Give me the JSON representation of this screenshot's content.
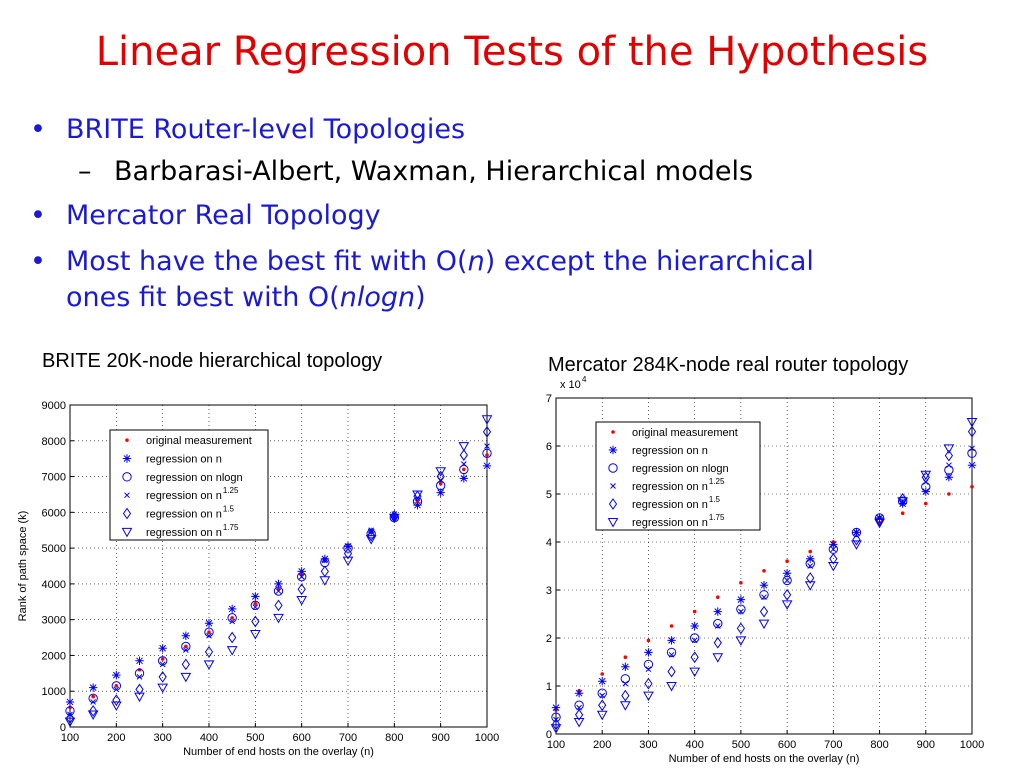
{
  "slide": {
    "title": "Linear Regression Tests of the Hypothesis",
    "bullets": [
      {
        "text": "BRITE Router-level Topologies"
      },
      {
        "text": "Barbarasi-Albert, Waxman, Hierarchical models"
      },
      {
        "text": "Mercator Real Topology"
      },
      {
        "text_a": "Most have the best fit with O(",
        "text_b": "n",
        "text_c": ") except the hierarchical",
        "text_d": "ones fit best with O(",
        "text_e": "nlogn",
        "text_f": ")"
      }
    ],
    "bullet_marker": "•",
    "sub_marker": "–"
  },
  "chart_data": [
    {
      "type": "scatter",
      "title": "BRITE 20K-node hierarchical topology",
      "xlabel": "Number of end hosts on the overlay (n)",
      "ylabel": "Rank of path space (k)",
      "xlim": [
        100,
        1000
      ],
      "ylim": [
        0,
        9000
      ],
      "xticks": [
        100,
        200,
        300,
        400,
        500,
        600,
        700,
        800,
        900,
        1000
      ],
      "yticks": [
        0,
        1000,
        2000,
        3000,
        4000,
        5000,
        6000,
        7000,
        8000,
        9000
      ],
      "y_multiplier": "",
      "grid": true,
      "legend_position": "top-left",
      "x": [
        100,
        150,
        200,
        250,
        300,
        350,
        400,
        450,
        500,
        550,
        600,
        650,
        700,
        750,
        800,
        850,
        900,
        950,
        1000
      ],
      "series": [
        {
          "name": "original measurement",
          "marker": "dot",
          "color": "#ff0000",
          "values": [
            550,
            850,
            1150,
            1600,
            1900,
            2250,
            2650,
            3050,
            3450,
            3850,
            4250,
            4650,
            5050,
            5450,
            5900,
            6300,
            6800,
            7200,
            7600
          ]
        },
        {
          "name": "regression on n",
          "marker": "star",
          "color": "#0000ff",
          "values": [
            700,
            1100,
            1450,
            1850,
            2200,
            2550,
            2900,
            3300,
            3650,
            4000,
            4350,
            4700,
            5050,
            5450,
            5850,
            6200,
            6550,
            6950,
            7300
          ]
        },
        {
          "name": "regression on nlogn",
          "marker": "circle",
          "color": "#0000ff",
          "values": [
            450,
            800,
            1150,
            1500,
            1850,
            2250,
            2650,
            3050,
            3400,
            3800,
            4200,
            4600,
            5000,
            5400,
            5850,
            6300,
            6750,
            7200,
            7650
          ]
        },
        {
          "name": "regression on n",
          "name_sup": "1.25",
          "marker": "x",
          "color": "#0000ff",
          "values": [
            350,
            700,
            1050,
            1400,
            1750,
            2150,
            2550,
            2950,
            3350,
            3800,
            4200,
            4650,
            5050,
            5500,
            5950,
            6400,
            6900,
            7350,
            7850
          ]
        },
        {
          "name": "regression on n",
          "name_sup": "1.5",
          "marker": "diamond",
          "color": "#0000ff",
          "values": [
            250,
            450,
            750,
            1050,
            1400,
            1750,
            2100,
            2500,
            2950,
            3400,
            3850,
            4350,
            4850,
            5350,
            5900,
            6450,
            7000,
            7600,
            8250
          ]
        },
        {
          "name": "regression on n",
          "name_sup": "1.75",
          "marker": "triangle",
          "color": "#0000ff",
          "values": [
            150,
            350,
            600,
            850,
            1100,
            1400,
            1750,
            2150,
            2600,
            3050,
            3550,
            4100,
            4650,
            5250,
            5850,
            6500,
            7150,
            7850,
            8600
          ]
        }
      ]
    },
    {
      "type": "scatter",
      "title": "Mercator 284K-node real router topology",
      "xlabel": "Number of end hosts on the overlay (n)",
      "ylabel": "",
      "xlim": [
        100,
        1000
      ],
      "ylim": [
        0,
        7
      ],
      "xticks": [
        100,
        200,
        300,
        400,
        500,
        600,
        700,
        800,
        900,
        1000
      ],
      "yticks": [
        0,
        1,
        2,
        3,
        4,
        5,
        6,
        7
      ],
      "y_multiplier": "x 10",
      "y_multiplier_exp": "4",
      "grid": true,
      "legend_position": "top-left",
      "x": [
        100,
        150,
        200,
        250,
        300,
        350,
        400,
        450,
        500,
        550,
        600,
        650,
        700,
        750,
        800,
        850,
        900,
        950,
        1000
      ],
      "series": [
        {
          "name": "original measurement",
          "marker": "dot",
          "color": "#ff0000",
          "values": [
            0.5,
            0.9,
            1.25,
            1.6,
            1.95,
            2.25,
            2.55,
            2.85,
            3.15,
            3.4,
            3.6,
            3.8,
            4.0,
            4.2,
            4.4,
            4.6,
            4.8,
            5.0,
            5.15
          ]
        },
        {
          "name": "regression on n",
          "marker": "star",
          "color": "#0000ff",
          "values": [
            0.55,
            0.85,
            1.1,
            1.4,
            1.7,
            1.95,
            2.25,
            2.55,
            2.8,
            3.1,
            3.35,
            3.65,
            3.95,
            4.2,
            4.5,
            4.8,
            5.05,
            5.35,
            5.6
          ]
        },
        {
          "name": "regression on nlogn",
          "marker": "circle",
          "color": "#0000ff",
          "values": [
            0.35,
            0.6,
            0.85,
            1.15,
            1.45,
            1.7,
            2.0,
            2.3,
            2.6,
            2.9,
            3.2,
            3.55,
            3.85,
            4.2,
            4.5,
            4.85,
            5.15,
            5.5,
            5.85
          ]
        },
        {
          "name": "regression on n",
          "name_sup": "1.25",
          "marker": "x",
          "color": "#0000ff",
          "values": [
            0.3,
            0.55,
            0.8,
            1.05,
            1.35,
            1.65,
            1.95,
            2.25,
            2.55,
            2.85,
            3.2,
            3.5,
            3.85,
            4.2,
            4.5,
            4.85,
            5.25,
            5.6,
            5.95
          ]
        },
        {
          "name": "regression on n",
          "name_sup": "1.5",
          "marker": "diamond",
          "color": "#0000ff",
          "values": [
            0.2,
            0.4,
            0.6,
            0.8,
            1.05,
            1.3,
            1.6,
            1.9,
            2.2,
            2.55,
            2.9,
            3.25,
            3.65,
            4.05,
            4.45,
            4.9,
            5.35,
            5.8,
            6.3
          ]
        },
        {
          "name": "regression on n",
          "name_sup": "1.75",
          "marker": "triangle",
          "color": "#0000ff",
          "values": [
            0.12,
            0.25,
            0.4,
            0.6,
            0.8,
            1.0,
            1.3,
            1.6,
            1.95,
            2.3,
            2.7,
            3.1,
            3.5,
            3.95,
            4.4,
            4.85,
            5.4,
            5.95,
            6.5
          ]
        }
      ]
    }
  ]
}
